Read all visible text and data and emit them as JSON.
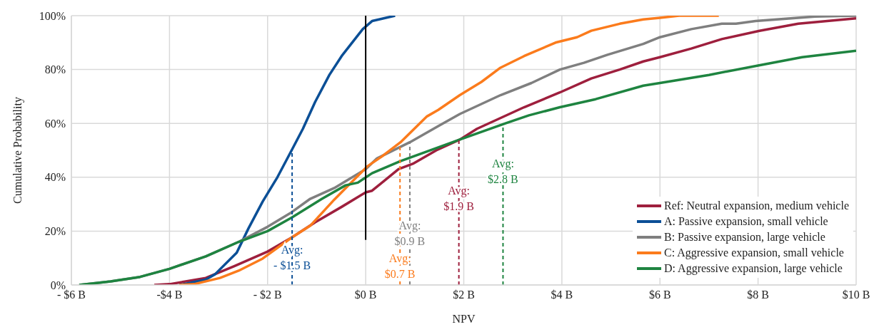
{
  "chart_data": {
    "type": "line",
    "xlabel": "NPV",
    "ylabel": "Cumulative Probability",
    "xlim": [
      -6,
      10
    ],
    "xticks": [
      {
        "value": -6,
        "label": "- $6 B"
      },
      {
        "value": -4,
        "label": "-$4 B"
      },
      {
        "value": -2,
        "label": "- $2 B"
      },
      {
        "value": 0,
        "label": "$0 B"
      },
      {
        "value": 2,
        "label": "$2 B"
      },
      {
        "value": 4,
        "label": "$4 B"
      },
      {
        "value": 6,
        "label": "$6 B"
      },
      {
        "value": 8,
        "label": "$8 B"
      },
      {
        "value": 10,
        "label": "$10 B"
      }
    ],
    "ylim": [
      0,
      100
    ],
    "yticks": [
      {
        "value": 0,
        "label": "0%"
      },
      {
        "value": 20,
        "label": "20%"
      },
      {
        "value": 40,
        "label": "40%"
      },
      {
        "value": 60,
        "label": "60%"
      },
      {
        "value": 80,
        "label": "80%"
      },
      {
        "value": 100,
        "label": "100%"
      }
    ],
    "grid": true,
    "legend": "bottom right",
    "marker": "none",
    "line_style": "solid",
    "series": [
      {
        "name": "Ref: Neutral expansion, medium vehicle",
        "color": "#9e1f3d",
        "x": [
          -4.31,
          -4,
          -3.26,
          -2.68,
          -2,
          -1.51,
          -1.03,
          -0.49,
          0,
          0.13,
          0.67,
          0.96,
          1.44,
          1.92,
          2.27,
          3.23,
          3.96,
          4.6,
          5.18,
          5.66,
          6,
          6.64,
          7.26,
          8.03,
          8.82,
          10
        ],
        "values": [
          0,
          0.3,
          2.6,
          7,
          12.4,
          17.6,
          23.3,
          29,
          34.4,
          35,
          43,
          45,
          50,
          54,
          58,
          66,
          71.5,
          76.7,
          80,
          83,
          84.6,
          87.8,
          91.3,
          94.4,
          97,
          99
        ]
      },
      {
        "name": "A: Passive expansion, small vehicle",
        "color": "#0b4f96",
        "x": [
          -3.8,
          -3.26,
          -3.07,
          -2.63,
          -2.39,
          -2.1,
          -1.8,
          -1.51,
          -1.28,
          -1.03,
          -0.74,
          -0.49,
          -0.06,
          0.13,
          0.6
        ],
        "values": [
          0,
          2,
          4,
          12,
          21,
          31,
          40,
          50,
          58,
          68,
          78,
          85,
          95,
          98,
          100
        ]
      },
      {
        "name": "B: Passive expansion, large vehicle",
        "color": "#7f7f7f",
        "x": [
          -5.84,
          -5.2,
          -4.6,
          -4,
          -3.26,
          -2.59,
          -2,
          -1.51,
          -1.13,
          -0.64,
          0,
          0.23,
          0.9,
          1.48,
          1.92,
          2.75,
          3.38,
          3.96,
          4.45,
          4.93,
          5.66,
          6,
          6.64,
          7.26,
          7.55,
          7.95,
          9.16,
          10
        ],
        "values": [
          0,
          1.3,
          3,
          6,
          10.6,
          16,
          21.6,
          27,
          32,
          36,
          43,
          47,
          53,
          59,
          63.5,
          70.5,
          75,
          80,
          82.5,
          85.5,
          89.5,
          92,
          95,
          97,
          97,
          98,
          99.7,
          100
        ]
      },
      {
        "name": "C: Aggressive expansion, small vehicle",
        "color": "#fb7b1c",
        "x": [
          -3.8,
          -3.5,
          -2.97,
          -2.59,
          -2.1,
          -1.51,
          -1.13,
          -0.64,
          0.03,
          0.32,
          0.71,
          1.25,
          1.48,
          1.92,
          2.36,
          2.75,
          3.23,
          3.87,
          4.31,
          4.6,
          5.18,
          5.66,
          6,
          6.39,
          7.2
        ],
        "values": [
          0,
          0.3,
          2.6,
          5.3,
          9.8,
          17.6,
          22,
          31.7,
          44,
          47.6,
          53,
          62.6,
          65,
          70.5,
          75.4,
          80.7,
          85,
          90,
          92,
          94.4,
          97,
          98.6,
          99.2,
          100,
          100
        ]
      },
      {
        "name": "D: Aggressive expansion, large vehicle",
        "color": "#1e8440",
        "x": [
          -5.84,
          -5.2,
          -4.6,
          -4,
          -3.26,
          -2.59,
          -2,
          -1.51,
          -0.89,
          -0.41,
          -0.16,
          0.13,
          0.71,
          1.92,
          2.85,
          3.33,
          3.96,
          4.69,
          5.66,
          6,
          7,
          8,
          8.9,
          10
        ],
        "values": [
          0,
          1.3,
          3,
          6,
          10.6,
          16,
          20,
          25,
          32,
          37,
          38,
          41.5,
          46,
          54,
          60,
          63,
          66,
          69,
          74,
          75,
          78,
          81.5,
          84.6,
          87
        ]
      },
      {
        "color": "#000000",
        "x": [
          0,
          0
        ],
        "values": [
          16.7,
          100
        ]
      },
      {
        "color": "#0b4f96",
        "line_style": "dashed",
        "x": [
          -1.5,
          -1.5
        ],
        "values": [
          0,
          50
        ]
      },
      {
        "color": "#fb7b1c",
        "line_style": "dashed",
        "x": [
          0.7,
          0.7
        ],
        "values": [
          0,
          53
        ]
      },
      {
        "color": "#7f7f7f",
        "line_style": "dashed",
        "x": [
          0.9,
          0.9
        ],
        "values": [
          0,
          53.4
        ]
      },
      {
        "color": "#9e1f3d",
        "line_style": "dashed",
        "x": [
          1.9,
          1.9
        ],
        "values": [
          0,
          54
        ]
      },
      {
        "color": "#1e8440",
        "line_style": "dashed",
        "x": [
          2.8,
          2.8
        ],
        "values": [
          0,
          60
        ]
      }
    ],
    "annotations": [
      {
        "text": "Avg:\n- $1.5 B",
        "x": -1.5,
        "y": 10
      },
      {
        "text": "Avg:\n$0.7 B",
        "x": 0.7,
        "y": 7
      },
      {
        "text": "Avg:\n$0.9 B",
        "x": 0.9,
        "y": 19
      },
      {
        "text": "Avg:\n$1.9 B",
        "x": 1.9,
        "y": 32
      },
      {
        "text": "Avg:\n$2.8 B",
        "x": 2.8,
        "y": 42
      }
    ]
  }
}
